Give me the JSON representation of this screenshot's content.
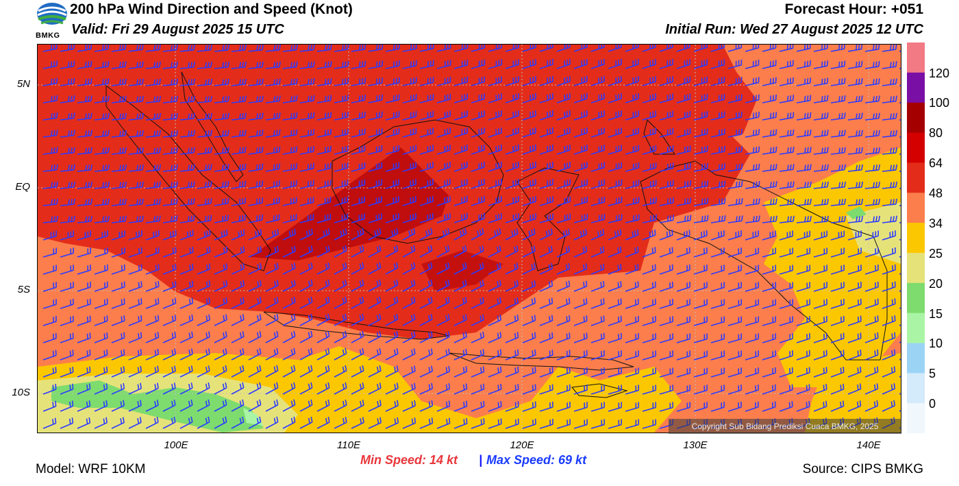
{
  "header": {
    "title": "200 hPa Wind Direction and Speed (Knot)",
    "valid": "Valid: Fri 29 August 2025 15 UTC",
    "forecast_hour": "Forecast Hour: +051",
    "initial_run": "Initial Run: Wed 27 August 2025 12 UTC"
  },
  "logo": {
    "text": "BMKG"
  },
  "map": {
    "lat_labels": [
      "5N",
      "EQ",
      "5S",
      "10S"
    ],
    "lon_labels": [
      "100E",
      "110E",
      "120E",
      "130E",
      "140E"
    ],
    "copyright": "Copyright Sub Bidang Prediksi Cuaca BMKG, 2025",
    "wind_barb_color": "#2b3bff"
  },
  "colorbar": {
    "labels": [
      "120",
      "100",
      "80",
      "64",
      "48",
      "34",
      "25",
      "20",
      "15",
      "10",
      "5",
      "0"
    ],
    "colors": [
      "#f27a85",
      "#7a0fa5",
      "#a50000",
      "#d40000",
      "#e32d1a",
      "#fb7e4c",
      "#fbc700",
      "#e6e27a",
      "#7edb6e",
      "#aaf5a5",
      "#9bd3f5",
      "#d4ebfb",
      "#f0f7fd"
    ]
  },
  "footer": {
    "min_speed": "Min Speed:  14 kt",
    "separator": "|",
    "max_speed": "Max Speed:  69 kt",
    "model": "Model: WRF 10KM",
    "source": "Source: CIPS BMKG"
  }
}
